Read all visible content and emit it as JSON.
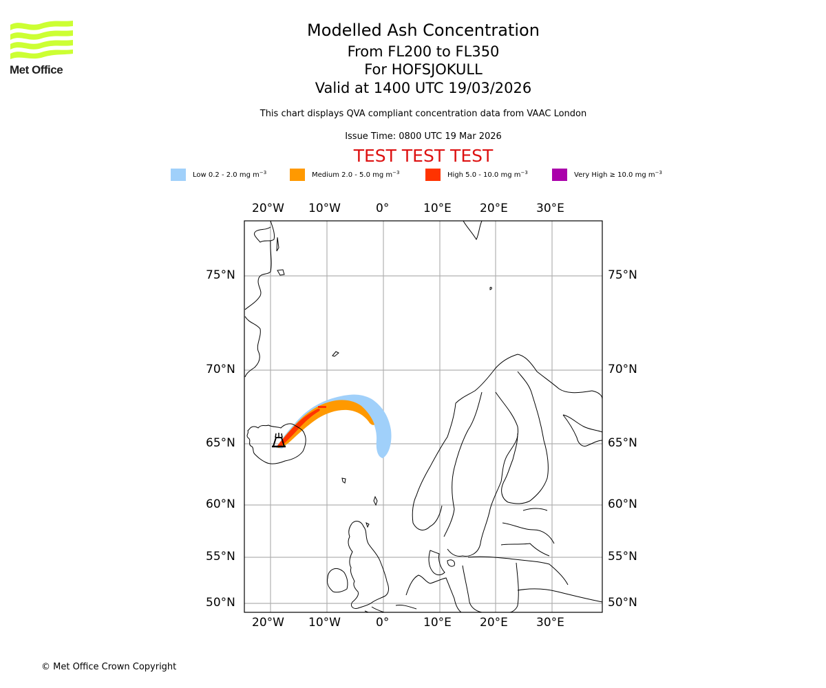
{
  "branding": {
    "logo_text": "Met Office",
    "logo_color": "#ccff33"
  },
  "header": {
    "title": "Modelled Ash Concentration",
    "level_range": "From FL200 to FL350",
    "volcano": "For HOFSJOKULL",
    "valid_time": "Valid at 1400 UTC 19/03/2026",
    "description": "This chart displays QVA compliant concentration data from VAAC London",
    "issue_time": "Issue Time: 0800 UTC 19 Mar 2026",
    "test_banner": "TEST TEST TEST",
    "test_color": "#dd1111"
  },
  "legend": [
    {
      "label": "Low 0.2 - 2.0 mg m",
      "exp": "−3",
      "color": "#a0d0fa"
    },
    {
      "label": "Medium 2.0 - 5.0 mg m",
      "exp": "−3",
      "color": "#ff9900"
    },
    {
      "label": "High 5.0 - 10.0 mg m",
      "exp": "−3",
      "color": "#ff3300"
    },
    {
      "label": "Very High ≥ 10.0 mg m",
      "exp": "−3",
      "color": "#aa00aa"
    }
  ],
  "map": {
    "lon_labels": [
      "20°W",
      "10°W",
      "0°",
      "10°E",
      "20°E",
      "30°E"
    ],
    "lat_labels": [
      "75°N",
      "70°N",
      "65°N",
      "60°N",
      "55°N",
      "50°N"
    ],
    "volcano_marker": "volcano-icon"
  },
  "footer": {
    "copyright": "© Met Office Crown Copyright"
  }
}
